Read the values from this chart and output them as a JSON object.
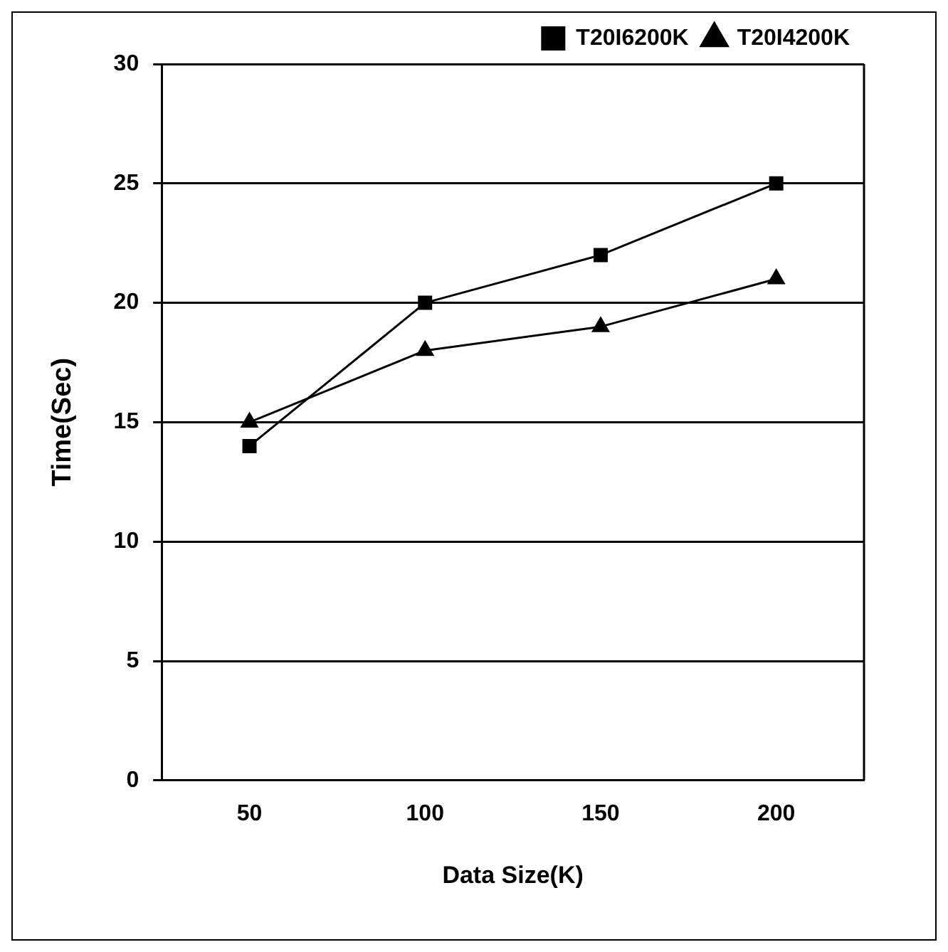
{
  "chart_data": {
    "type": "line",
    "xlabel": "Data Size(K)",
    "ylabel": "Time(Sec)",
    "categories": [
      "50",
      "100",
      "150",
      "200"
    ],
    "series": [
      {
        "name": "T20I6200K",
        "color": "#000000",
        "marker": "square",
        "values": [
          14,
          20,
          22,
          25
        ]
      },
      {
        "name": "T20I4200K",
        "color": "#000000",
        "marker": "triangle",
        "values": [
          15,
          18,
          19,
          21
        ]
      }
    ],
    "ylim": [
      0,
      30
    ],
    "yticks": [
      0,
      5,
      10,
      15,
      20,
      25,
      30
    ],
    "grid": "y",
    "legend": "top right",
    "line_style": "solid"
  }
}
